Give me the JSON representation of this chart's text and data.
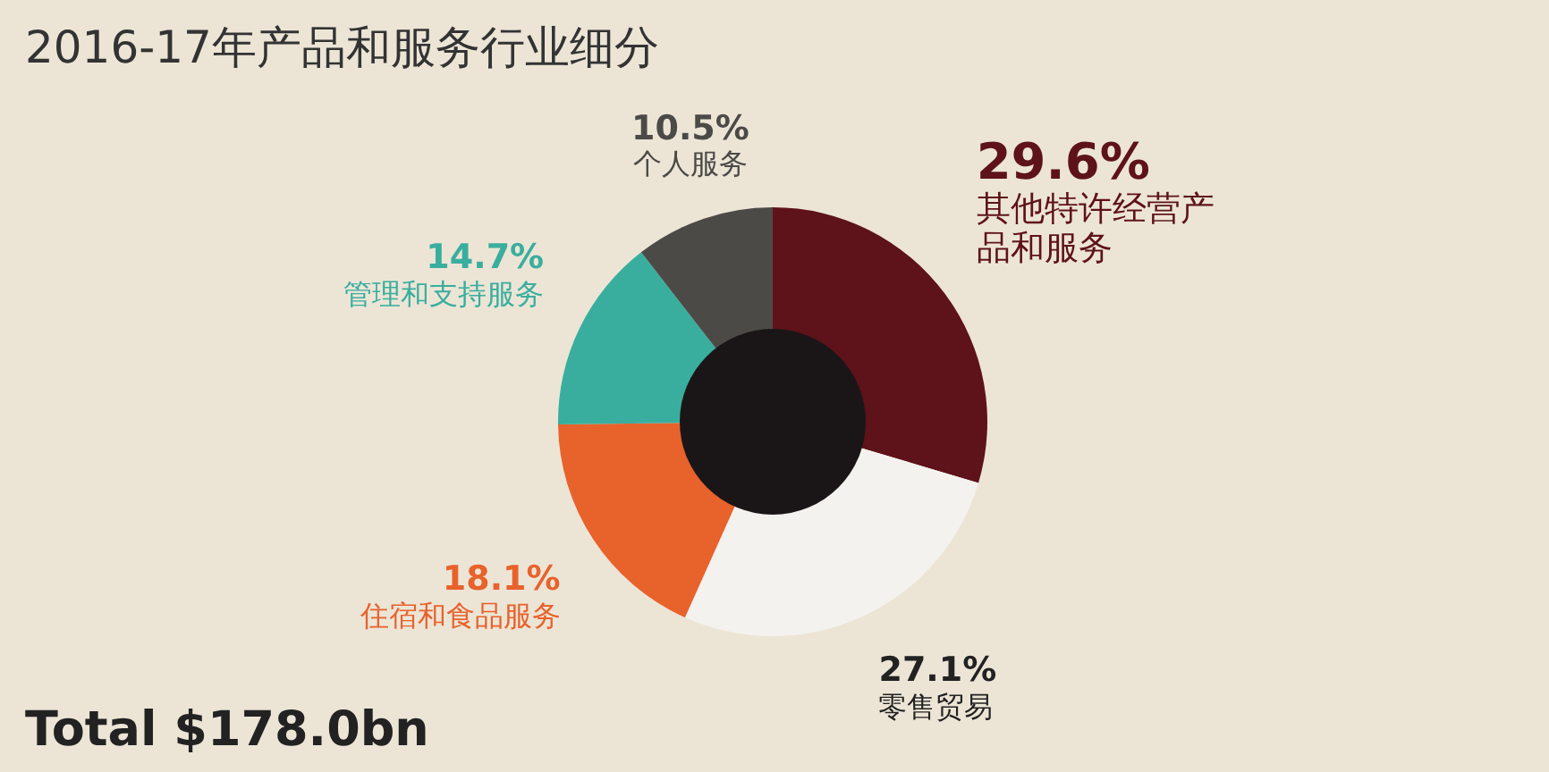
{
  "chart_data": {
    "type": "donut",
    "title": "2016-17年产品和服务行业细分",
    "categories": [
      "其他特许经营产品和服务",
      "零售贸易",
      "住宿和食品服务",
      "管理和支持服务",
      "个人服务"
    ],
    "values": [
      29.6,
      27.1,
      18.1,
      14.7,
      10.5
    ],
    "colors": [
      "#5e1219",
      "#f4f2ee",
      "#e8622c",
      "#3aae9e",
      "#4b4a47"
    ],
    "value_labels": [
      "29.6%",
      "27.1%",
      "18.1%",
      "14.7%",
      "10.5%"
    ],
    "annotations": [
      "Total $178.0bn"
    ]
  }
}
